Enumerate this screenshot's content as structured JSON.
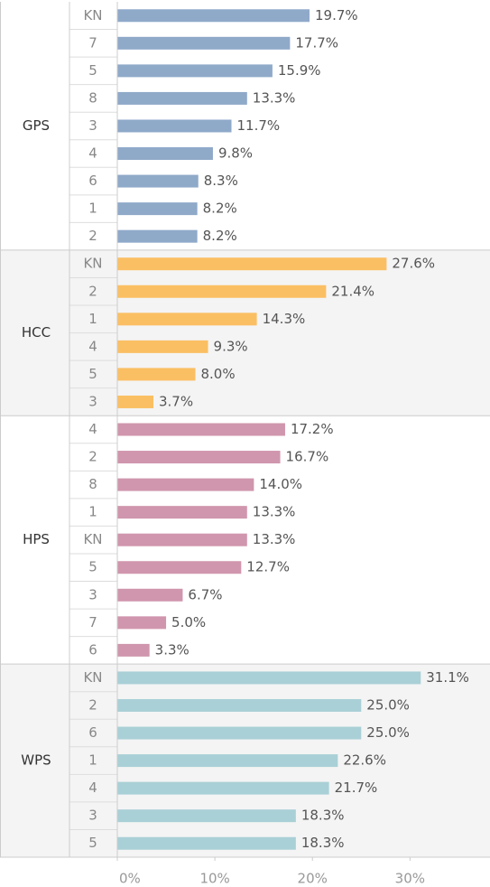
{
  "chart_data": {
    "type": "bar",
    "groups": [
      {
        "name": "GPS",
        "color": "#8fa9c9",
        "categories": [
          "KN",
          "7",
          "5",
          "8",
          "3",
          "4",
          "6",
          "1",
          "2"
        ],
        "values": [
          19.7,
          17.7,
          15.9,
          13.3,
          11.7,
          9.8,
          8.3,
          8.2,
          8.2
        ],
        "value_labels": [
          "19.7%",
          "17.7%",
          "15.9%",
          "13.3%",
          "11.7%",
          "9.8%",
          "8.3%",
          "8.2%",
          "8.2%"
        ]
      },
      {
        "name": "HCC",
        "color": "#fbbf63",
        "categories": [
          "KN",
          "2",
          "1",
          "4",
          "5",
          "3"
        ],
        "values": [
          27.6,
          21.4,
          14.3,
          9.3,
          8.0,
          3.7
        ],
        "value_labels": [
          "27.6%",
          "21.4%",
          "14.3%",
          "9.3%",
          "8.0%",
          "3.7%"
        ]
      },
      {
        "name": "HPS",
        "color": "#d096ad",
        "categories": [
          "4",
          "2",
          "8",
          "1",
          "KN",
          "5",
          "3",
          "7",
          "6"
        ],
        "values": [
          17.2,
          16.7,
          14.0,
          13.3,
          13.3,
          12.7,
          6.7,
          5.0,
          3.3
        ],
        "value_labels": [
          "17.2%",
          "16.7%",
          "14.0%",
          "13.3%",
          "13.3%",
          "12.7%",
          "6.7%",
          "5.0%",
          "3.3%"
        ]
      },
      {
        "name": "WPS",
        "color": "#a9d0d6",
        "categories": [
          "KN",
          "2",
          "6",
          "1",
          "4",
          "3",
          "5"
        ],
        "values": [
          31.1,
          25.0,
          25.0,
          22.6,
          21.7,
          18.3,
          18.3
        ],
        "value_labels": [
          "31.1%",
          "25.0%",
          "25.0%",
          "22.6%",
          "21.7%",
          "18.3%",
          "18.3%"
        ]
      }
    ],
    "xlim": [
      0,
      38.2
    ],
    "xticks": [
      {
        "value": 0,
        "label": "0%"
      },
      {
        "value": 10,
        "label": "10%"
      },
      {
        "value": 20,
        "label": "20%"
      },
      {
        "value": 30,
        "label": "30%"
      }
    ]
  }
}
